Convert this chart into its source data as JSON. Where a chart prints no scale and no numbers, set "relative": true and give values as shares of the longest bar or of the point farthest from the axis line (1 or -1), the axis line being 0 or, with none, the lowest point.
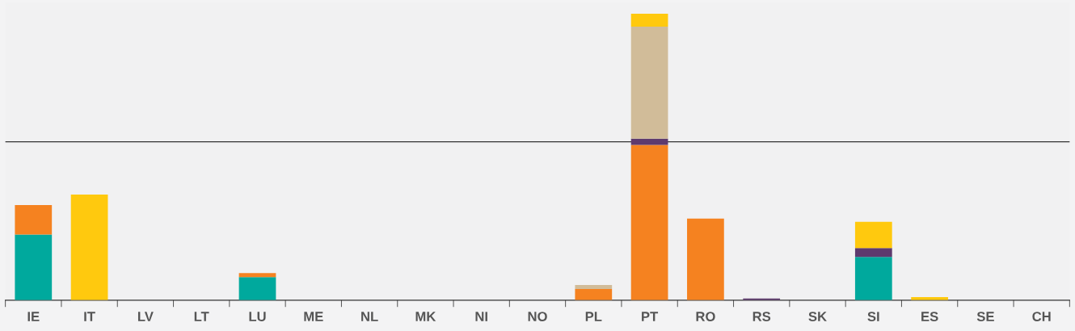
{
  "chart_data": {
    "type": "bar",
    "stacked": true,
    "relative": true,
    "categories": [
      "IE",
      "IT",
      "LV",
      "LT",
      "LU",
      "ME",
      "NL",
      "MK",
      "NI",
      "NO",
      "PL",
      "PT",
      "RO",
      "RS",
      "SK",
      "SI",
      "ES",
      "SE",
      "CH"
    ],
    "series": [
      {
        "color": "#00a99d",
        "values": [
          0.229,
          0,
          0,
          0,
          0.081,
          0,
          0,
          0,
          0,
          0,
          0,
          0,
          0,
          0,
          0,
          0.151,
          0,
          0,
          0
        ]
      },
      {
        "color": "#f58220",
        "values": [
          0.103,
          0,
          0,
          0,
          0.014,
          0,
          0,
          0,
          0,
          0,
          0.039,
          0.542,
          0.285,
          0,
          0,
          0,
          0,
          0,
          0
        ]
      },
      {
        "color": "#5e3a6e",
        "values": [
          0,
          0,
          0,
          0,
          0,
          0,
          0,
          0,
          0,
          0,
          0,
          0.022,
          0,
          0.006,
          0,
          0.031,
          0,
          0,
          0
        ]
      },
      {
        "color": "#d1bc99",
        "values": [
          0,
          0,
          0,
          0,
          0,
          0,
          0,
          0,
          0,
          0,
          0.014,
          0.391,
          0,
          0,
          0,
          0,
          0,
          0,
          0
        ]
      },
      {
        "color": "#ffc90e",
        "values": [
          0,
          0.369,
          0,
          0,
          0,
          0,
          0,
          0,
          0,
          0,
          0,
          0.045,
          0,
          0,
          0,
          0.092,
          0.011,
          0,
          0
        ]
      }
    ],
    "ref_lines": [
      {
        "axis": "y",
        "value": 0.553,
        "color": "#333333"
      }
    ],
    "grid": false,
    "legend": false
  }
}
